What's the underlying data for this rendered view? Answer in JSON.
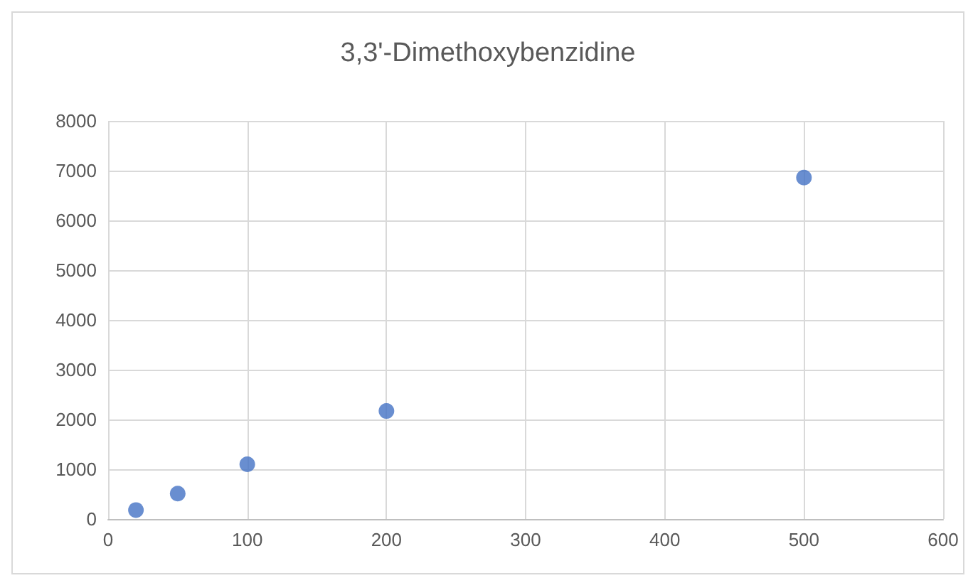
{
  "chart_data": {
    "type": "scatter",
    "title": "3,3'-Dimethoxybenzidine",
    "x": [
      20,
      50,
      100,
      200,
      500
    ],
    "series": [
      {
        "color": "#4472c4",
        "values": [
          180,
          510,
          1100,
          2170,
          6860
        ]
      }
    ],
    "xlim": [
      0,
      600
    ],
    "xticks": [
      0,
      100,
      200,
      300,
      400,
      500,
      600
    ],
    "ylim": [
      0,
      8000
    ],
    "yticks": [
      0,
      1000,
      2000,
      3000,
      4000,
      5000,
      6000,
      7000,
      8000
    ],
    "grid": true,
    "marker": "circle"
  }
}
